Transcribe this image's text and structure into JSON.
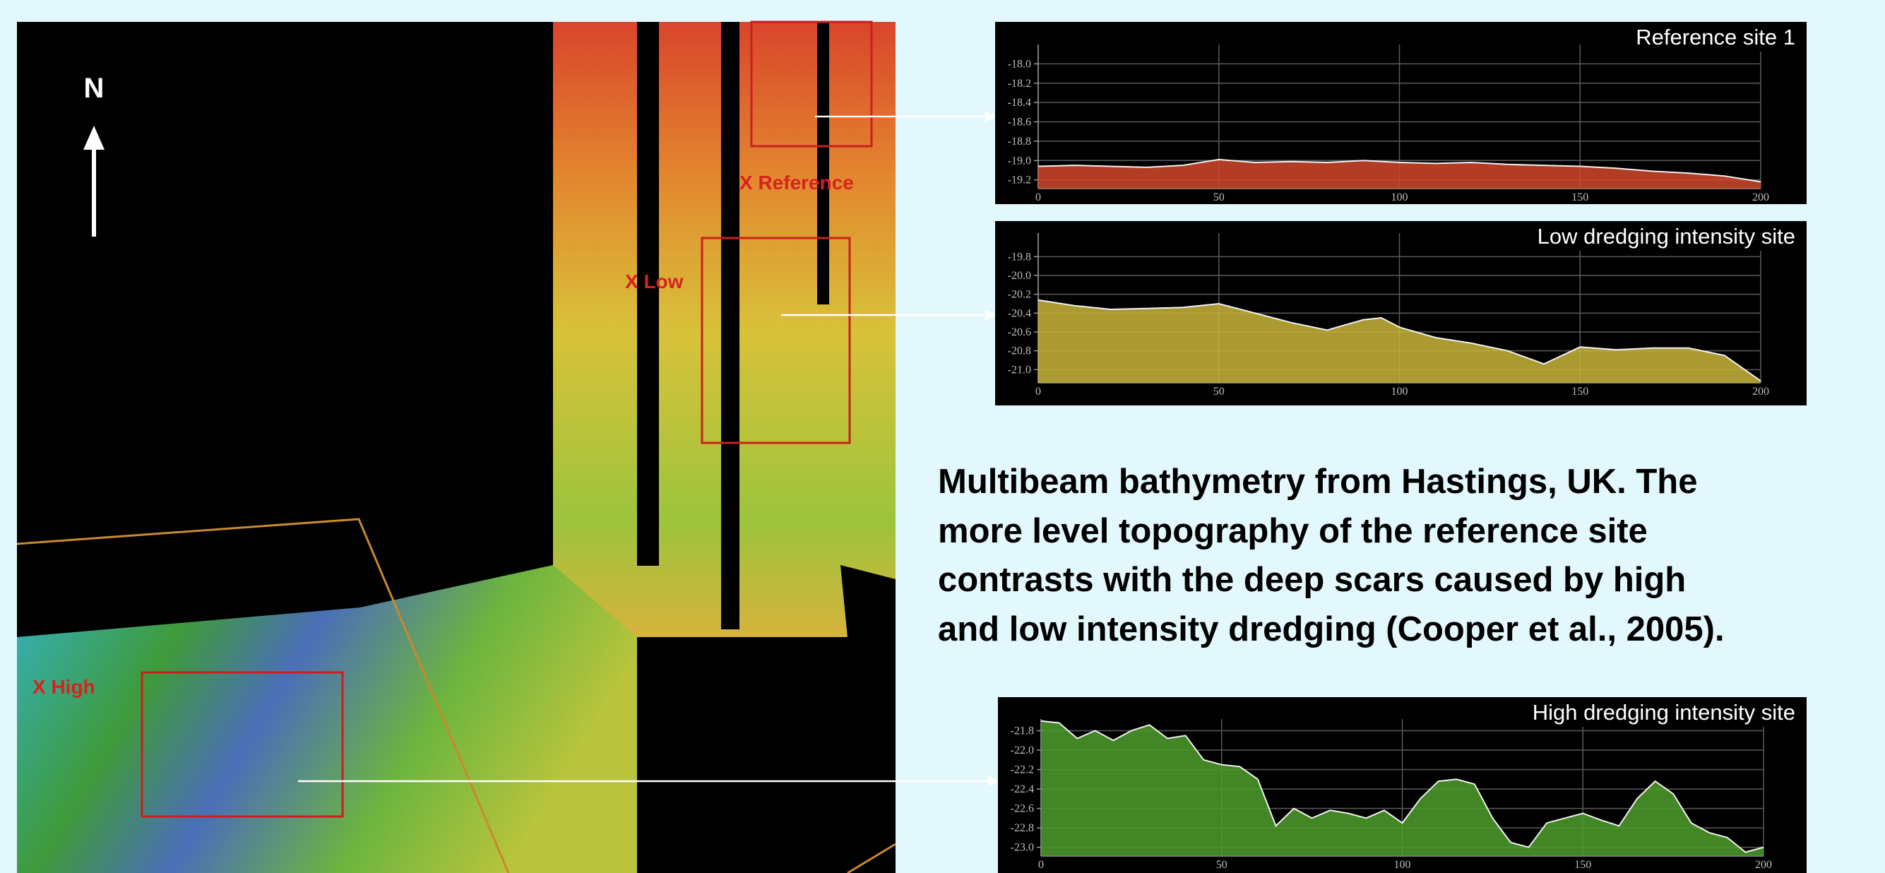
{
  "map": {
    "north": "N",
    "labels": [
      "X Reference",
      "X Low",
      "X High"
    ]
  },
  "caption": [
    "Multibeam bathymetry from Hastings, UK.  The",
    "more level topography of the reference site",
    "contrasts with the deep scars caused by high",
    "and low intensity dredging (Cooper et al., 2005)."
  ],
  "chart_data": [
    {
      "type": "area",
      "title": "Reference site 1",
      "color": "#d2482a",
      "x": [
        0,
        10,
        20,
        30,
        40,
        50,
        60,
        70,
        80,
        90,
        100,
        110,
        120,
        130,
        140,
        150,
        160,
        170,
        180,
        190,
        200
      ],
      "values": [
        -19.06,
        -19.05,
        -19.06,
        -19.07,
        -19.05,
        -18.99,
        -19.02,
        -19.01,
        -19.02,
        -19.0,
        -19.02,
        -19.03,
        -19.02,
        -19.04,
        -19.05,
        -19.06,
        -19.08,
        -19.11,
        -19.13,
        -19.16,
        -19.22
      ],
      "xlim": [
        0,
        200
      ],
      "xticks": [
        0,
        50,
        100,
        150,
        200
      ],
      "ylim": [
        -19.29,
        -17.8
      ],
      "yticks": [
        {
          "value": -18,
          "label": "-18.0"
        },
        -18.2,
        -18.4,
        -18.6,
        -18.8,
        {
          "value": -19,
          "label": "-19.0"
        },
        -19.2
      ],
      "grid": true
    },
    {
      "type": "area",
      "title": "Low dredging intensity site",
      "color": "#c9b43a",
      "x": [
        0,
        10,
        20,
        30,
        40,
        50,
        60,
        70,
        80,
        90,
        95,
        100,
        110,
        120,
        130,
        140,
        150,
        160,
        170,
        180,
        190,
        200
      ],
      "values": [
        -20.26,
        -20.32,
        -20.36,
        -20.35,
        -20.34,
        -20.3,
        -20.4,
        -20.5,
        -20.58,
        -20.47,
        -20.45,
        -20.55,
        -20.66,
        -20.72,
        -20.8,
        -20.94,
        -20.76,
        -20.79,
        -20.77,
        -20.77,
        -20.85,
        -21.12
      ],
      "xlim": [
        0,
        200
      ],
      "xticks": [
        0,
        50,
        100,
        150,
        200
      ],
      "ylim": [
        -21.14,
        -19.55
      ],
      "yticks": [
        -19.8,
        {
          "value": -20,
          "label": "-20.0"
        },
        -20.2,
        -20.4,
        -20.6,
        -20.8,
        {
          "value": -21,
          "label": "-21.0"
        }
      ],
      "grid": true
    },
    {
      "type": "area",
      "title": "High dredging intensity site",
      "color": "#4e9e2c",
      "x": [
        0,
        5,
        10,
        15,
        20,
        25,
        30,
        35,
        40,
        45,
        50,
        55,
        60,
        65,
        70,
        75,
        80,
        85,
        90,
        95,
        100,
        105,
        110,
        115,
        120,
        125,
        130,
        135,
        140,
        145,
        150,
        155,
        160,
        165,
        170,
        175,
        180,
        185,
        190,
        195,
        200
      ],
      "values": [
        -21.7,
        -21.72,
        -21.88,
        -21.8,
        -21.9,
        -21.8,
        -21.74,
        -21.88,
        -21.85,
        -22.1,
        -22.15,
        -22.17,
        -22.3,
        -22.78,
        -22.6,
        -22.7,
        -22.62,
        -22.65,
        -22.7,
        -22.62,
        -22.75,
        -22.5,
        -22.32,
        -22.3,
        -22.35,
        -22.7,
        -22.95,
        -23.0,
        -22.75,
        -22.7,
        -22.65,
        -22.72,
        -22.78,
        -22.5,
        -22.32,
        -22.45,
        -22.75,
        -22.85,
        -22.9,
        -23.05,
        -23.0
      ],
      "xlim": [
        0,
        200
      ],
      "xticks": [
        0,
        50,
        100,
        150,
        200
      ],
      "ylim": [
        -23.09,
        -21.68
      ],
      "yticks": [
        -21.8,
        {
          "value": -22,
          "label": "-22.0"
        },
        -22.2,
        -22.4,
        -22.6,
        -22.8,
        {
          "value": -23,
          "label": "-23.0"
        }
      ],
      "grid": true
    }
  ]
}
